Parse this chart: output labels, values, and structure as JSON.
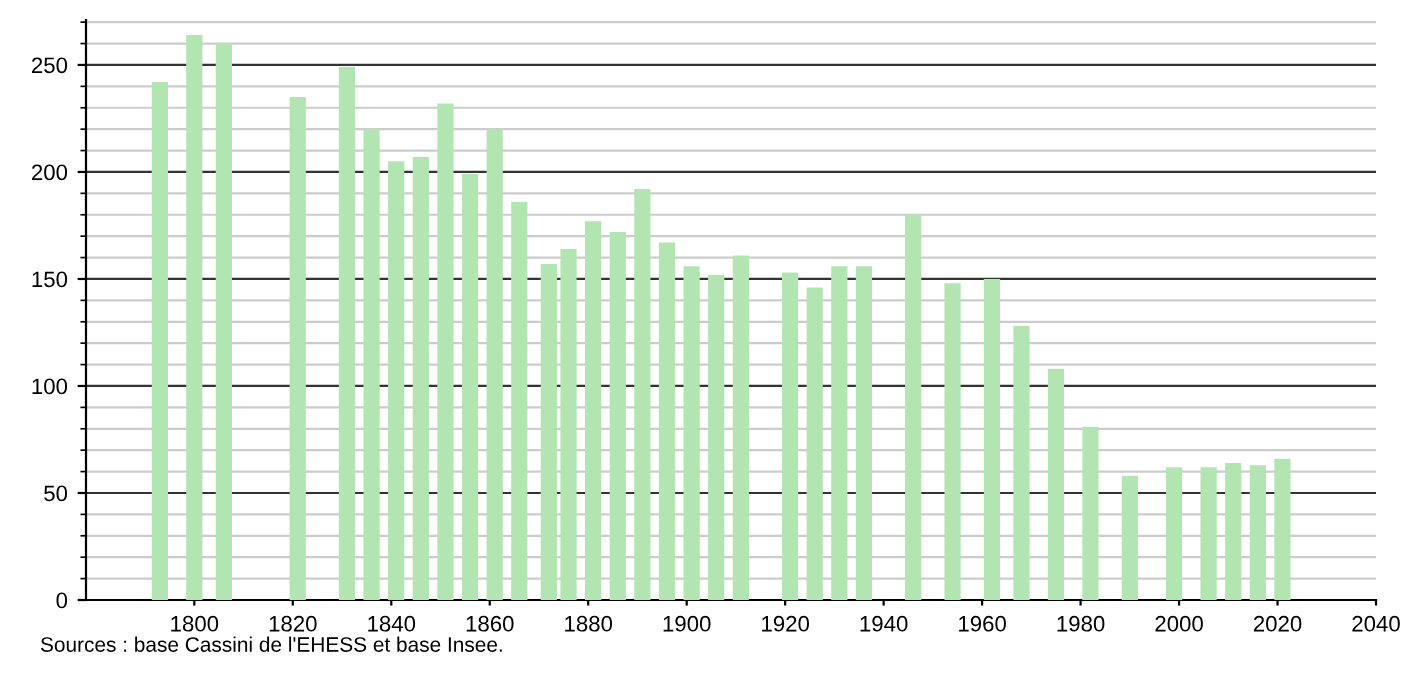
{
  "chart_data": {
    "type": "bar",
    "x": [
      1793,
      1800,
      1806,
      1821,
      1831,
      1836,
      1841,
      1846,
      1851,
      1856,
      1861,
      1866,
      1872,
      1876,
      1881,
      1886,
      1891,
      1896,
      1901,
      1906,
      1911,
      1921,
      1926,
      1931,
      1936,
      1946,
      1954,
      1962,
      1968,
      1975,
      1982,
      1990,
      1999,
      2006,
      2011,
      2016,
      2021
    ],
    "values": [
      242,
      264,
      260,
      235,
      249,
      220,
      205,
      207,
      232,
      199,
      220,
      186,
      157,
      164,
      177,
      172,
      192,
      167,
      156,
      152,
      161,
      153,
      146,
      156,
      156,
      180,
      148,
      150,
      128,
      108,
      81,
      58,
      62,
      62,
      64,
      63,
      66
    ],
    "color": "#b3e5b3",
    "xlim": [
      1778,
      2040
    ],
    "xticks": [
      1800,
      1820,
      1840,
      1860,
      1880,
      1900,
      1920,
      1940,
      1960,
      1980,
      2000,
      2020,
      2040
    ],
    "ylim": [
      0,
      271
    ],
    "yticks": [
      0,
      50,
      100,
      150,
      200,
      250
    ],
    "grid": "y",
    "annotations": [
      "Sources : base Cassini de l'EHESS et base Insee."
    ]
  }
}
